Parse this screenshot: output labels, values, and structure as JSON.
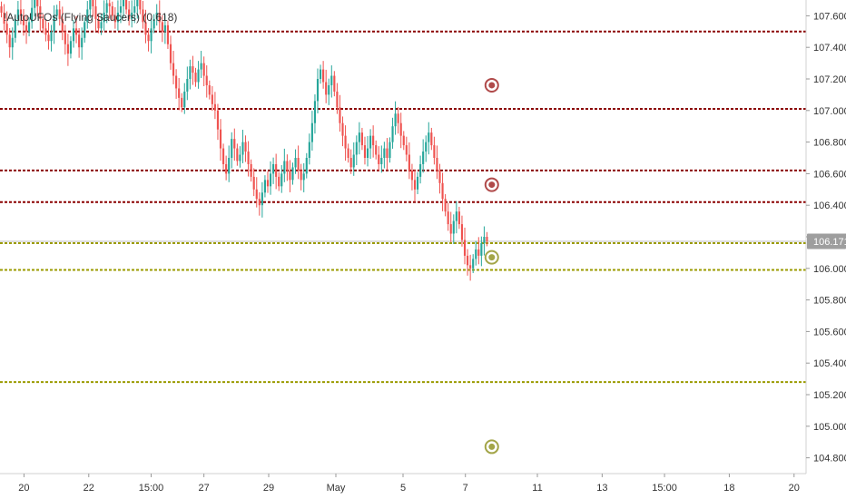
{
  "legend": {
    "text": "!AutoUFOs (Flying Saucers)  (0.618)"
  },
  "chart_data": {
    "type": "candlestick",
    "ylim": [
      104.7,
      107.7
    ],
    "y_ticks": [
      "107.600",
      "107.400",
      "107.200",
      "107.000",
      "106.800",
      "106.600",
      "106.400",
      "106.200",
      "106.000",
      "105.800",
      "105.600",
      "105.400",
      "105.200",
      "105.000",
      "104.800"
    ],
    "y_tick_values": [
      107.6,
      107.4,
      107.2,
      107.0,
      106.8,
      106.6,
      106.4,
      106.2,
      106.0,
      105.8,
      105.6,
      105.4,
      105.2,
      105.0,
      104.8
    ],
    "x_ticks": [
      "20",
      "22",
      "15:00",
      "27",
      "29",
      "May",
      "5",
      "7",
      "11",
      "13",
      "15:00",
      "18",
      "20"
    ],
    "x_tick_positions": [
      10,
      37,
      63,
      85,
      112,
      140,
      168,
      194,
      224,
      251,
      277,
      304,
      331
    ],
    "x_range": [
      0,
      336
    ],
    "last_price": {
      "label": "106.171",
      "value": 106.171,
      "color": "#9e9e9e"
    },
    "resistance_lines": {
      "color": "#8b0000",
      "values": [
        107.5,
        107.01,
        106.62,
        106.42
      ]
    },
    "support_lines": {
      "color": "#9b9b00",
      "values": [
        106.16,
        105.99,
        105.28
      ]
    },
    "ufo_markers": [
      {
        "kind": "resistance",
        "color": "#b04a4a",
        "x": 205,
        "value": 107.16
      },
      {
        "kind": "resistance",
        "color": "#b04a4a",
        "x": 205,
        "value": 106.53
      },
      {
        "kind": "support",
        "color": "#a3a548",
        "x": 205,
        "value": 106.07
      },
      {
        "kind": "support",
        "color": "#a3a548",
        "x": 205,
        "value": 104.87
      }
    ],
    "up_color": "#26a69a",
    "down_color": "#ef5350",
    "candles_close": [
      107.62,
      107.55,
      107.48,
      107.4,
      107.46,
      107.58,
      107.64,
      107.6,
      107.54,
      107.5,
      107.56,
      107.65,
      107.7,
      107.66,
      107.58,
      107.52,
      107.48,
      107.44,
      107.5,
      107.6,
      107.64,
      107.58,
      107.5,
      107.42,
      107.36,
      107.44,
      107.52,
      107.48,
      107.4,
      107.46,
      107.56,
      107.64,
      107.7,
      107.66,
      107.58,
      107.52,
      107.56,
      107.62,
      107.68,
      107.66,
      107.6,
      107.56,
      107.62,
      107.66,
      107.7,
      107.64,
      107.58,
      107.62,
      107.66,
      107.7,
      107.64,
      107.56,
      107.48,
      107.44,
      107.52,
      107.58,
      107.62,
      107.56,
      107.5,
      107.54,
      107.42,
      107.3,
      107.22,
      107.14,
      107.08,
      107.02,
      107.12,
      107.2,
      107.28,
      107.24,
      107.18,
      107.26,
      107.3,
      107.22,
      107.16,
      107.1,
      107.04,
      107.0,
      106.88,
      106.76,
      106.66,
      106.6,
      106.7,
      106.82,
      106.76,
      106.68,
      106.72,
      106.8,
      106.74,
      106.66,
      106.58,
      106.5,
      106.44,
      106.4,
      106.48,
      106.56,
      106.52,
      106.6,
      106.66,
      106.58,
      106.52,
      106.6,
      106.68,
      106.62,
      106.56,
      106.64,
      106.7,
      106.62,
      106.56,
      106.6,
      106.7,
      106.8,
      106.92,
      107.06,
      107.2,
      107.26,
      107.18,
      107.1,
      107.16,
      107.22,
      107.12,
      107.02,
      106.92,
      106.84,
      106.76,
      106.7,
      106.64,
      106.72,
      106.8,
      106.86,
      106.78,
      106.7,
      106.76,
      106.84,
      106.78,
      106.72,
      106.66,
      106.7,
      106.76,
      106.7,
      106.8,
      106.9,
      106.98,
      106.92,
      106.84,
      106.78,
      106.72,
      106.62,
      106.56,
      106.5,
      106.58,
      106.66,
      106.74,
      106.8,
      106.86,
      106.78,
      106.7,
      106.62,
      106.54,
      106.44,
      106.36,
      106.28,
      106.22,
      106.3,
      106.36,
      106.28,
      106.18,
      106.08,
      106.02,
      106.0,
      106.06,
      106.12,
      106.08,
      106.16,
      106.2,
      106.17
    ]
  }
}
